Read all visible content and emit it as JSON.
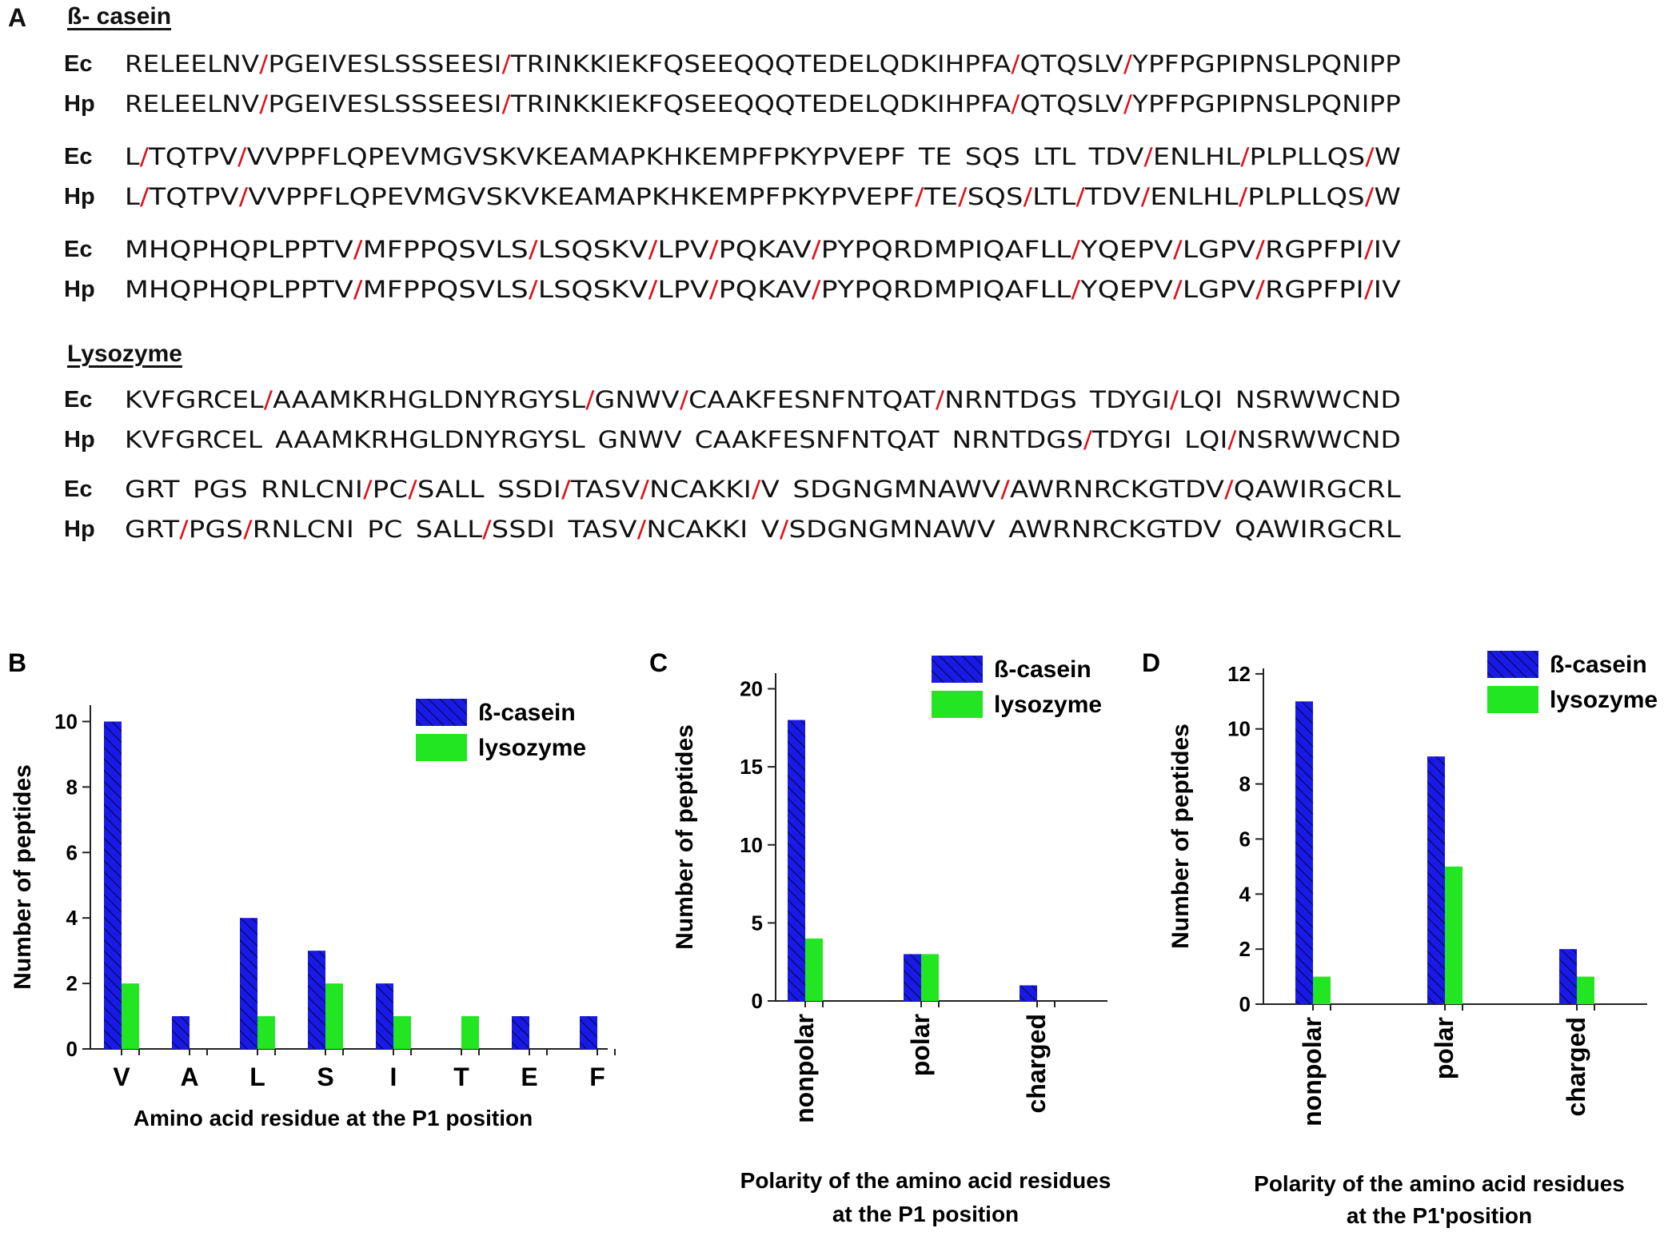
{
  "panel_a": {
    "letter": "A",
    "casein_heading": "ß- casein",
    "lysozyme_heading": "Lysozyme",
    "casein_rows": [
      {
        "label": "Ec",
        "segments": [
          "RELEELNV",
          "/",
          "PGEIVESLSSSEESI",
          "/",
          "TRINKKIEKFQSEEQQQTEDELQDKIHPFA",
          "/",
          "QTQSLV",
          "/",
          "YPFPGPIPNSLPQNIPP"
        ]
      },
      {
        "label": "Hp",
        "segments": [
          "RELEELNV",
          "/",
          "PGEIVESLSSSEESI",
          "/",
          "TRINKKIEKFQSEEQQQTEDELQDKIHPFA",
          "/",
          "QTQSLV",
          "/",
          "YPFPGPIPNSLPQNIPP"
        ]
      },
      {
        "label": "Ec",
        "segments": [
          "L",
          "/",
          "TQTPV",
          "/",
          "VVPPFLQPEVMGVSKVKEAMAPKHKEMPFPKYPVEPF",
          " ",
          "TE",
          " ",
          "SQS",
          " ",
          "LTL",
          " ",
          "TDV",
          "/",
          "ENLHL",
          "/",
          "PLPLLQS",
          "/",
          "W"
        ]
      },
      {
        "label": "Hp",
        "segments": [
          "L",
          "/",
          "TQTPV",
          "/",
          "VVPPFLQPEVMGVSKVKEAMAPKHKEMPFPKYPVEPF",
          "/",
          "TE",
          "/",
          "SQS",
          "/",
          "LTL",
          "/",
          "TDV",
          "/",
          "ENLHL",
          "/",
          "PLPLLQS",
          "/",
          "W"
        ]
      },
      {
        "label": "Ec",
        "segments": [
          "MHQPHQPLPPTV",
          "/",
          "MFPPQSVLS",
          "/",
          "LSQSKV",
          "/",
          "LPV",
          "/",
          "PQKAV",
          "/",
          "PYPQRDMPIQAFLL",
          "/",
          "YQEPV",
          "/",
          "LGPV",
          "/",
          "RGPFPI",
          "/",
          "IV"
        ]
      },
      {
        "label": "Hp",
        "segments": [
          "MHQPHQPLPPTV",
          "/",
          "MFPPQSVLS",
          "/",
          "LSQSKV",
          "/",
          "LPV",
          "/",
          "PQKAV",
          "/",
          "PYPQRDMPIQAFLL",
          "/",
          "YQEPV",
          "/",
          "LGPV",
          "/",
          "RGPFPI",
          "/",
          "IV"
        ]
      }
    ],
    "lysozyme_rows": [
      {
        "label": "Ec",
        "segments": [
          "KVFGRCEL",
          "/",
          "AAAMKRHGLDNYRGYSL",
          "/",
          "GNWV",
          "/",
          "CAAKFESNFNTQAT",
          "/",
          "NRNTDGS",
          " ",
          "TDYGI",
          "/",
          "LQI",
          " ",
          "NSRWWCND"
        ]
      },
      {
        "label": "Hp",
        "segments": [
          "KVFGRCEL",
          " ",
          "AAAMKRHGLDNYRGYSL",
          " ",
          "GNWV",
          " ",
          "CAAKFESNFNTQAT",
          " ",
          "NRNTDGS",
          "/",
          "TDYGI",
          " ",
          "LQI",
          "/",
          "NSRWWCND"
        ]
      },
      {
        "label": "Ec",
        "segments": [
          "GRT",
          " ",
          "PGS",
          " ",
          "RNLCNI",
          "/",
          "PC",
          "/",
          "SALL",
          " ",
          "SSDI",
          "/",
          "TASV",
          "/",
          "NCAKKI",
          "/",
          "V",
          " ",
          "SDGNGMNAWV",
          "/",
          "AWRNRCKGTDV",
          "/",
          "QAWIRGCRL"
        ]
      },
      {
        "label": "Hp",
        "segments": [
          "GRT",
          "/",
          "PGS",
          "/",
          "RNLCNI",
          " ",
          "PC",
          " ",
          "SALL",
          "/",
          "SSDI",
          " ",
          "TASV",
          "/",
          "NCAKKI",
          " ",
          "V",
          "/",
          "SDGNGMNAWV",
          " ",
          "AWRNRCKGTDV",
          " ",
          "QAWIRGCRL"
        ]
      }
    ]
  },
  "legend": {
    "casein": "ß-casein",
    "lysozyme": "lysozyme"
  },
  "colors": {
    "casein": "#1a1ae6",
    "lysozyme": "#22e622",
    "cleavage": "#e0101a"
  },
  "chart_data": [
    {
      "panel": "B",
      "type": "bar",
      "categories": [
        "V",
        "A",
        "L",
        "S",
        "I",
        "T",
        "E",
        "F"
      ],
      "series": [
        {
          "name": "ß-casein",
          "values": [
            10,
            1,
            4,
            3,
            2,
            0,
            1,
            1
          ]
        },
        {
          "name": "lysozyme",
          "values": [
            2,
            0,
            1,
            2,
            1,
            1,
            0,
            0
          ]
        }
      ],
      "xlabel": "Amino acid residue at the P1 position",
      "ylabel": "Number of peptides",
      "ylim": [
        0,
        10.5
      ],
      "yticks": [
        0,
        2,
        4,
        6,
        8,
        10
      ],
      "legend_position": "top-right",
      "grid": false
    },
    {
      "panel": "C",
      "type": "bar",
      "categories": [
        "nonpolar",
        "polar",
        "charged"
      ],
      "series": [
        {
          "name": "ß-casein",
          "values": [
            18,
            3,
            1
          ]
        },
        {
          "name": "lysozyme",
          "values": [
            4,
            3,
            0
          ]
        }
      ],
      "xlabel_lines": [
        "Polarity of the amino acid residues",
        "at the P1 position"
      ],
      "ylabel": "Number of peptides",
      "ylim": [
        0,
        21
      ],
      "yticks": [
        0,
        5,
        10,
        15,
        20
      ],
      "legend_position": "top-right",
      "grid": false
    },
    {
      "panel": "D",
      "type": "bar",
      "categories": [
        "nonpolar",
        "polar",
        "charged"
      ],
      "series": [
        {
          "name": "ß-casein",
          "values": [
            11,
            9,
            2
          ]
        },
        {
          "name": "lysozyme",
          "values": [
            1,
            5,
            1
          ]
        }
      ],
      "xlabel_lines": [
        "Polarity of the amino acid residues",
        "at the P1'position"
      ],
      "ylabel": "Number of peptides",
      "ylim": [
        0,
        12.2
      ],
      "yticks": [
        0,
        2,
        4,
        6,
        8,
        10,
        12
      ],
      "legend_position": "top-right",
      "grid": false
    }
  ]
}
